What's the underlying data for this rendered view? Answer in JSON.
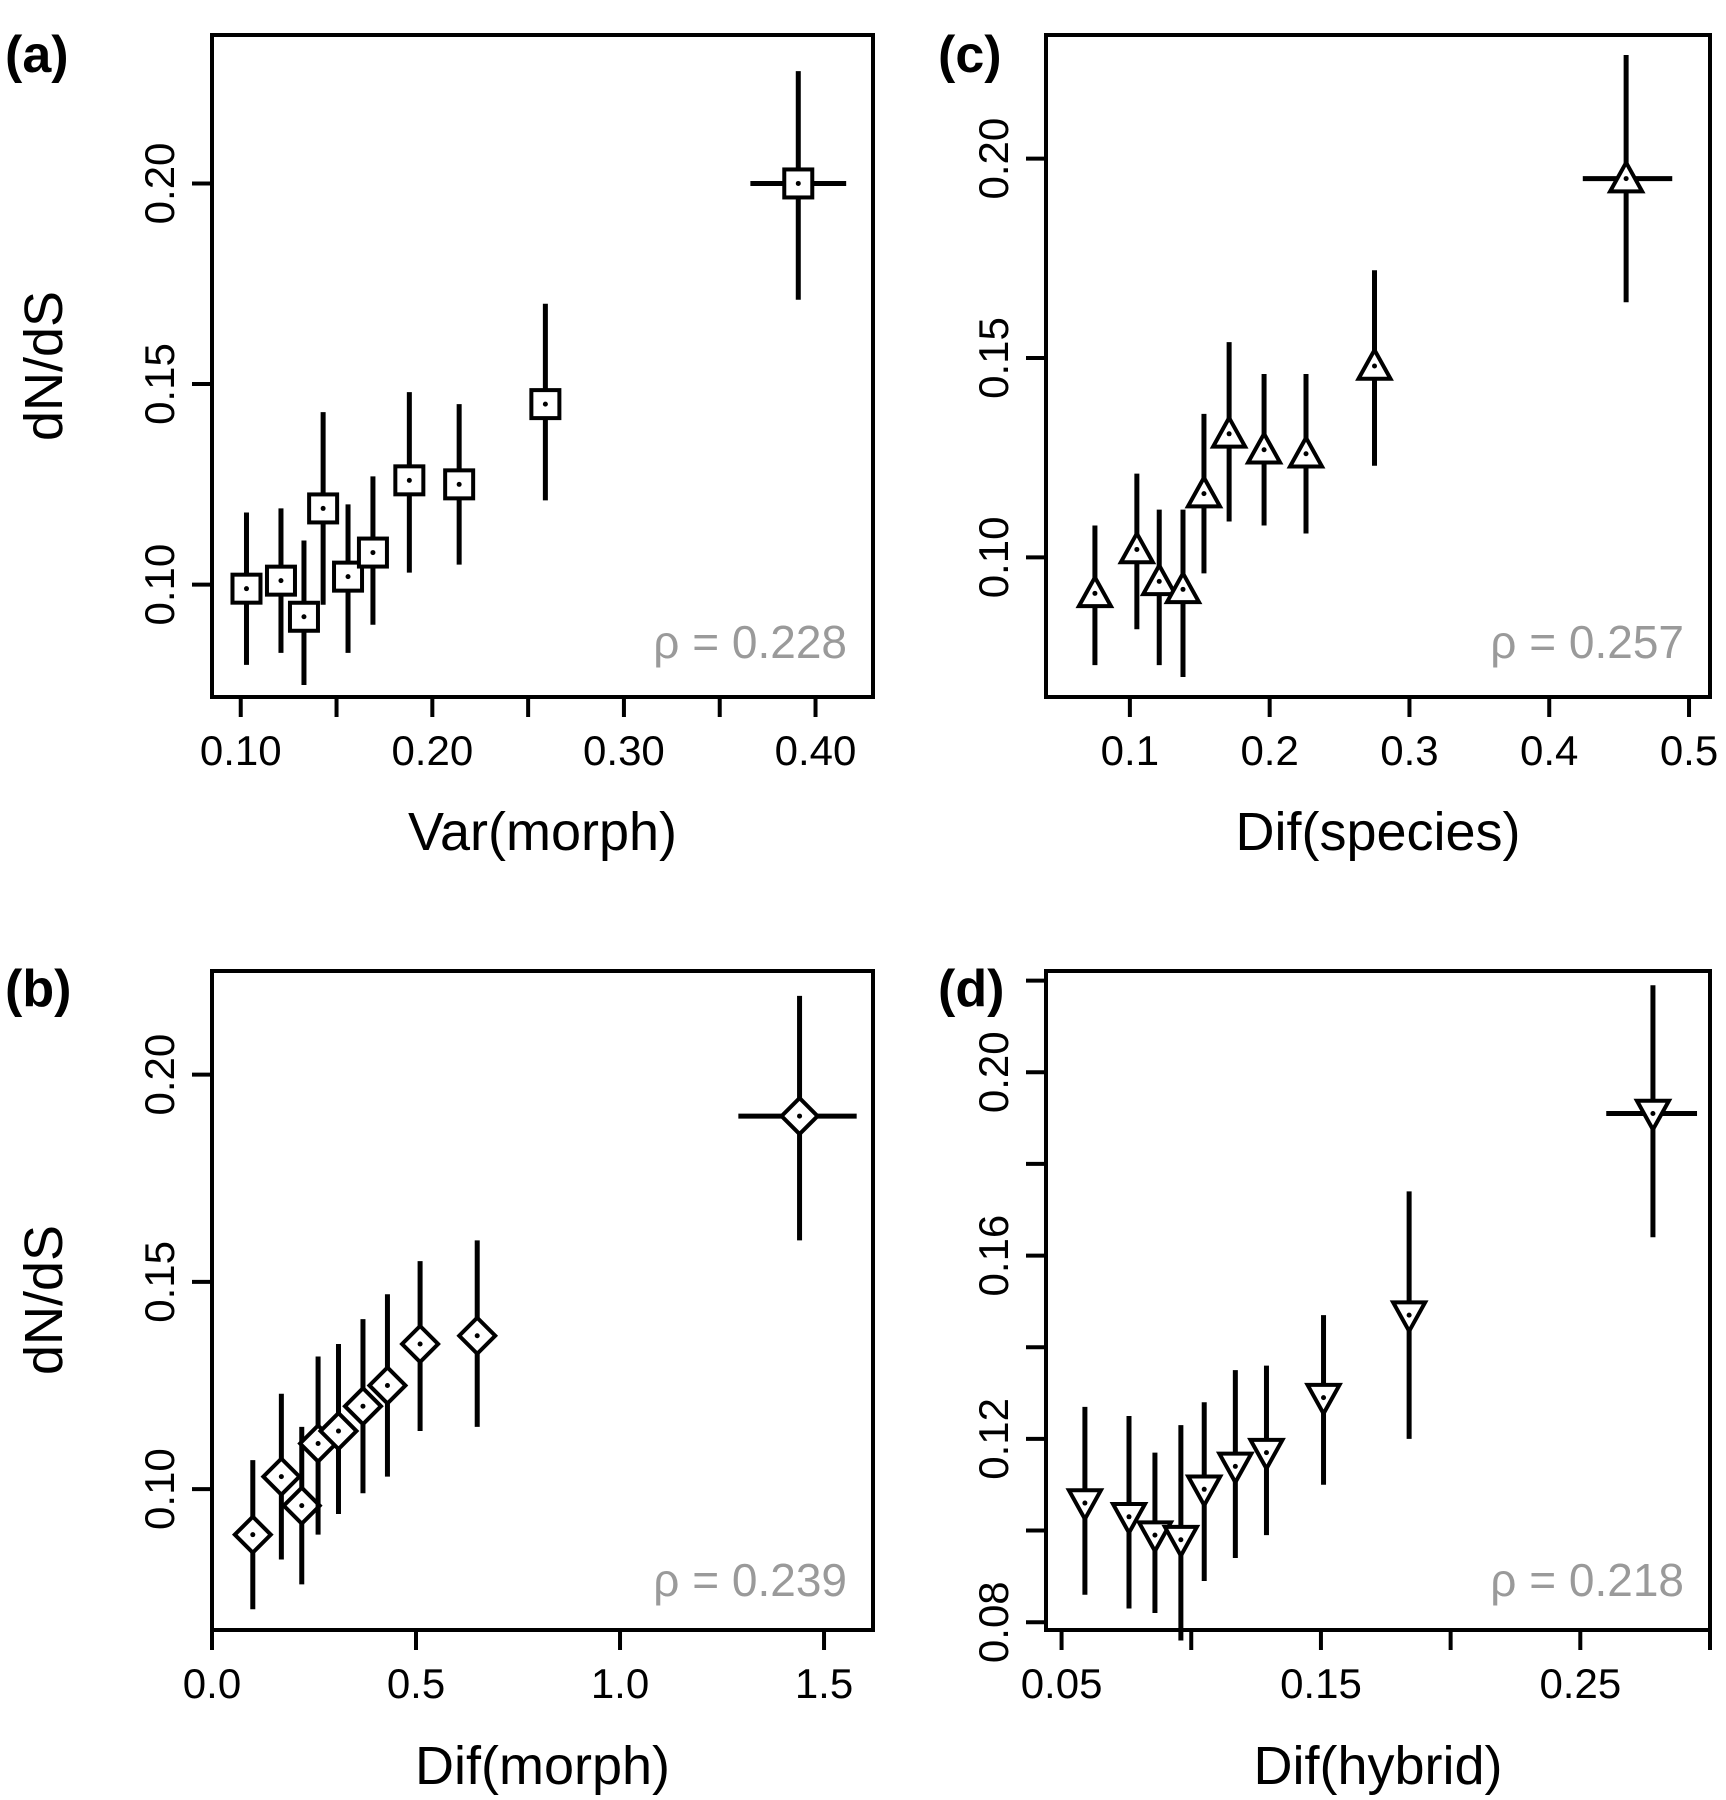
{
  "chart_data": [
    {
      "id": "a",
      "type": "scatter",
      "panel_label": "(a)",
      "xlabel": "Var(morph)",
      "ylabel": "dN/dS",
      "annotation": "ρ = 0.228",
      "marker": "square",
      "xlim": [
        0.085,
        0.43
      ],
      "ylim": [
        0.072,
        0.237
      ],
      "xticks": [
        0.1,
        0.15,
        0.2,
        0.25,
        0.3,
        0.35,
        0.4
      ],
      "xtick_labels": [
        {
          "value": 0.1,
          "label": "0.10"
        },
        {
          "value": 0.2,
          "label": "0.20"
        },
        {
          "value": 0.3,
          "label": "0.30"
        },
        {
          "value": 0.4,
          "label": "0.40"
        }
      ],
      "yticks": [
        0.1,
        0.15,
        0.2
      ],
      "ytick_labels": [
        "0.10",
        "0.15",
        "0.20"
      ],
      "points": [
        {
          "x": 0.103,
          "y": 0.099,
          "ylo": 0.08,
          "yhi": 0.118
        },
        {
          "x": 0.121,
          "y": 0.101,
          "ylo": 0.083,
          "yhi": 0.119
        },
        {
          "x": 0.133,
          "y": 0.092,
          "ylo": 0.075,
          "yhi": 0.111
        },
        {
          "x": 0.143,
          "y": 0.119,
          "ylo": 0.095,
          "yhi": 0.143
        },
        {
          "x": 0.156,
          "y": 0.102,
          "ylo": 0.083,
          "yhi": 0.12
        },
        {
          "x": 0.169,
          "y": 0.108,
          "ylo": 0.09,
          "yhi": 0.127
        },
        {
          "x": 0.188,
          "y": 0.126,
          "ylo": 0.103,
          "yhi": 0.148
        },
        {
          "x": 0.214,
          "y": 0.125,
          "ylo": 0.105,
          "yhi": 0.145
        },
        {
          "x": 0.259,
          "y": 0.145,
          "ylo": 0.121,
          "yhi": 0.17
        },
        {
          "x": 0.391,
          "y": 0.2,
          "ylo": 0.171,
          "yhi": 0.228,
          "xlo": 0.366,
          "xhi": 0.416
        }
      ]
    },
    {
      "id": "b",
      "type": "scatter",
      "panel_label": "(b)",
      "xlabel": "Dif(morph)",
      "ylabel": "dN/dS",
      "annotation": "ρ = 0.239",
      "marker": "diamond",
      "xlim": [
        0.0,
        1.62
      ],
      "ylim": [
        0.066,
        0.225
      ],
      "xticks": [
        0.0,
        0.5,
        1.0,
        1.5
      ],
      "xtick_labels": [
        {
          "value": 0.0,
          "label": "0.0"
        },
        {
          "value": 0.5,
          "label": "0.5"
        },
        {
          "value": 1.0,
          "label": "1.0"
        },
        {
          "value": 1.5,
          "label": "1.5"
        }
      ],
      "yticks": [
        0.1,
        0.15,
        0.2
      ],
      "ytick_labels": [
        "0.10",
        "0.15",
        "0.20"
      ],
      "points": [
        {
          "x": 0.1,
          "y": 0.089,
          "ylo": 0.071,
          "yhi": 0.107
        },
        {
          "x": 0.17,
          "y": 0.103,
          "ylo": 0.083,
          "yhi": 0.123
        },
        {
          "x": 0.22,
          "y": 0.096,
          "ylo": 0.077,
          "yhi": 0.115
        },
        {
          "x": 0.26,
          "y": 0.111,
          "ylo": 0.089,
          "yhi": 0.132
        },
        {
          "x": 0.31,
          "y": 0.114,
          "ylo": 0.094,
          "yhi": 0.135
        },
        {
          "x": 0.37,
          "y": 0.12,
          "ylo": 0.099,
          "yhi": 0.141
        },
        {
          "x": 0.43,
          "y": 0.125,
          "ylo": 0.103,
          "yhi": 0.147
        },
        {
          "x": 0.51,
          "y": 0.135,
          "ylo": 0.114,
          "yhi": 0.155
        },
        {
          "x": 0.65,
          "y": 0.137,
          "ylo": 0.115,
          "yhi": 0.16
        },
        {
          "x": 1.44,
          "y": 0.19,
          "ylo": 0.16,
          "yhi": 0.219,
          "xlo": 1.29,
          "xhi": 1.58
        }
      ]
    },
    {
      "id": "c",
      "type": "scatter",
      "panel_label": "(c)",
      "xlabel": "Dif(species)",
      "ylabel": "",
      "annotation": "ρ = 0.257",
      "marker": "triangle-up",
      "xlim": [
        0.04,
        0.515
      ],
      "ylim": [
        0.065,
        0.231
      ],
      "xticks": [
        0.1,
        0.2,
        0.3,
        0.4,
        0.5
      ],
      "xtick_labels": [
        {
          "value": 0.1,
          "label": "0.1"
        },
        {
          "value": 0.2,
          "label": "0.2"
        },
        {
          "value": 0.3,
          "label": "0.3"
        },
        {
          "value": 0.4,
          "label": "0.4"
        },
        {
          "value": 0.5,
          "label": "0.5"
        }
      ],
      "yticks": [
        0.1,
        0.15,
        0.2
      ],
      "ytick_labels": [
        "0.10",
        "0.15",
        "0.20"
      ],
      "points": [
        {
          "x": 0.075,
          "y": 0.091,
          "ylo": 0.073,
          "yhi": 0.108
        },
        {
          "x": 0.105,
          "y": 0.102,
          "ylo": 0.082,
          "yhi": 0.121
        },
        {
          "x": 0.121,
          "y": 0.094,
          "ylo": 0.073,
          "yhi": 0.112
        },
        {
          "x": 0.138,
          "y": 0.092,
          "ylo": 0.07,
          "yhi": 0.112
        },
        {
          "x": 0.153,
          "y": 0.116,
          "ylo": 0.096,
          "yhi": 0.136
        },
        {
          "x": 0.171,
          "y": 0.131,
          "ylo": 0.109,
          "yhi": 0.154
        },
        {
          "x": 0.196,
          "y": 0.127,
          "ylo": 0.108,
          "yhi": 0.146
        },
        {
          "x": 0.226,
          "y": 0.126,
          "ylo": 0.106,
          "yhi": 0.146
        },
        {
          "x": 0.275,
          "y": 0.148,
          "ylo": 0.123,
          "yhi": 0.172
        },
        {
          "x": 0.455,
          "y": 0.195,
          "ylo": 0.164,
          "yhi": 0.226,
          "xlo": 0.424,
          "xhi": 0.488
        }
      ]
    },
    {
      "id": "d",
      "type": "scatter",
      "panel_label": "(d)",
      "xlabel": "Dif(hybrid)",
      "ylabel": "",
      "annotation": "ρ = 0.218",
      "marker": "triangle-down",
      "xlim": [
        0.044,
        0.3
      ],
      "ylim": [
        0.0783,
        0.2221
      ],
      "xticks": [
        0.05,
        0.1,
        0.15,
        0.2,
        0.25,
        0.3
      ],
      "xtick_labels": [
        {
          "value": 0.05,
          "label": "0.05"
        },
        {
          "value": 0.15,
          "label": "0.15"
        },
        {
          "value": 0.25,
          "label": "0.25"
        }
      ],
      "yticks": [
        0.08,
        0.1,
        0.12,
        0.14,
        0.16,
        0.18,
        0.2,
        0.22
      ],
      "ytick_labels": [
        {
          "value": 0.08,
          "label": "0.08"
        },
        {
          "value": 0.12,
          "label": "0.12"
        },
        {
          "value": 0.16,
          "label": "0.16"
        },
        {
          "value": 0.2,
          "label": "0.20"
        }
      ],
      "points": [
        {
          "x": 0.059,
          "y": 0.106,
          "ylo": 0.086,
          "yhi": 0.127
        },
        {
          "x": 0.076,
          "y": 0.103,
          "ylo": 0.083,
          "yhi": 0.125
        },
        {
          "x": 0.086,
          "y": 0.099,
          "ylo": 0.082,
          "yhi": 0.117
        },
        {
          "x": 0.096,
          "y": 0.098,
          "ylo": 0.076,
          "yhi": 0.123
        },
        {
          "x": 0.105,
          "y": 0.109,
          "ylo": 0.089,
          "yhi": 0.128
        },
        {
          "x": 0.117,
          "y": 0.114,
          "ylo": 0.094,
          "yhi": 0.135
        },
        {
          "x": 0.129,
          "y": 0.117,
          "ylo": 0.099,
          "yhi": 0.136
        },
        {
          "x": 0.151,
          "y": 0.129,
          "ylo": 0.11,
          "yhi": 0.147
        },
        {
          "x": 0.184,
          "y": 0.147,
          "ylo": 0.12,
          "yhi": 0.174
        },
        {
          "x": 0.278,
          "y": 0.191,
          "ylo": 0.164,
          "yhi": 0.219,
          "xlo": 0.26,
          "xhi": 0.295
        }
      ]
    }
  ]
}
